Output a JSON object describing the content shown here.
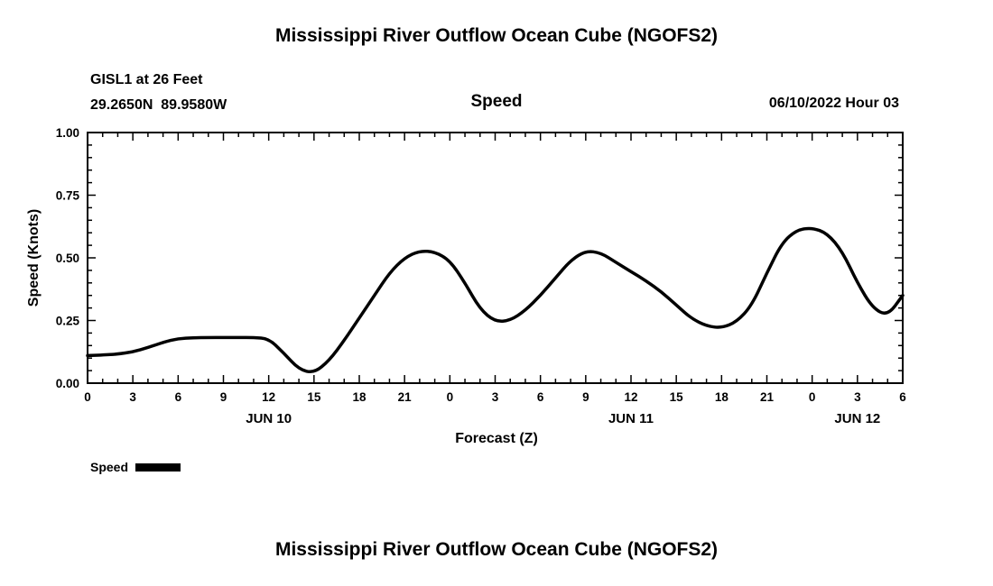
{
  "page": {
    "top_title": "Mississippi River Outflow Ocean Cube (NGOFS2)",
    "bottom_title": "Mississippi River Outflow Ocean Cube (NGOFS2)"
  },
  "header": {
    "station_line1": "GISL1 at 26 Feet",
    "station_line2": "29.2650N  89.9580W",
    "plot_name": "Speed",
    "run_info": "06/10/2022 Hour 03"
  },
  "legend": {
    "label": "Speed",
    "swatch_color": "#000000"
  },
  "chart_data": {
    "type": "line",
    "title": "Speed",
    "xlabel": "Forecast (Z)",
    "ylabel": "Speed (Knots)",
    "xlim": [
      0,
      54
    ],
    "ylim": [
      0.0,
      1.0
    ],
    "grid": false,
    "line_color": "#000000",
    "x_tick_step": 3,
    "x_tick_labels": [
      "0",
      "3",
      "6",
      "9",
      "12",
      "15",
      "18",
      "21",
      "0",
      "3",
      "6",
      "9",
      "12",
      "15",
      "18",
      "21",
      "0",
      "3",
      "6"
    ],
    "y_ticks": [
      0.0,
      0.25,
      0.5,
      0.75,
      1.0
    ],
    "y_tick_labels": [
      "0.00",
      "0.25",
      "0.50",
      "0.75",
      "1.00"
    ],
    "day_labels": [
      {
        "label": "JUN 10",
        "x": 12
      },
      {
        "label": "JUN 11",
        "x": 36
      },
      {
        "label": "JUN 12",
        "x": 51
      }
    ],
    "legend_entries": [
      "Speed"
    ],
    "legend_position": "bottom-left",
    "series": [
      {
        "name": "Speed",
        "color": "#000000",
        "x": [
          0,
          1,
          2,
          3,
          4,
          5,
          6,
          7,
          8,
          9,
          10,
          11,
          12,
          13,
          14,
          15,
          16,
          17,
          18,
          19,
          20,
          21,
          22,
          23,
          24,
          25,
          26,
          27,
          28,
          29,
          30,
          31,
          32,
          33,
          34,
          35,
          36,
          37,
          38,
          39,
          40,
          41,
          42,
          43,
          44,
          45,
          46,
          47,
          48,
          49,
          50,
          51,
          52,
          53,
          54
        ],
        "y": [
          0.11,
          0.112,
          0.116,
          0.125,
          0.142,
          0.163,
          0.178,
          0.181,
          0.182,
          0.182,
          0.182,
          0.182,
          0.178,
          0.12,
          0.055,
          0.04,
          0.09,
          0.17,
          0.26,
          0.35,
          0.44,
          0.5,
          0.528,
          0.524,
          0.49,
          0.4,
          0.295,
          0.245,
          0.25,
          0.29,
          0.35,
          0.42,
          0.49,
          0.528,
          0.52,
          0.482,
          0.445,
          0.408,
          0.365,
          0.312,
          0.258,
          0.228,
          0.22,
          0.245,
          0.31,
          0.44,
          0.56,
          0.612,
          0.62,
          0.598,
          0.525,
          0.4,
          0.3,
          0.268,
          0.35
        ]
      }
    ]
  }
}
